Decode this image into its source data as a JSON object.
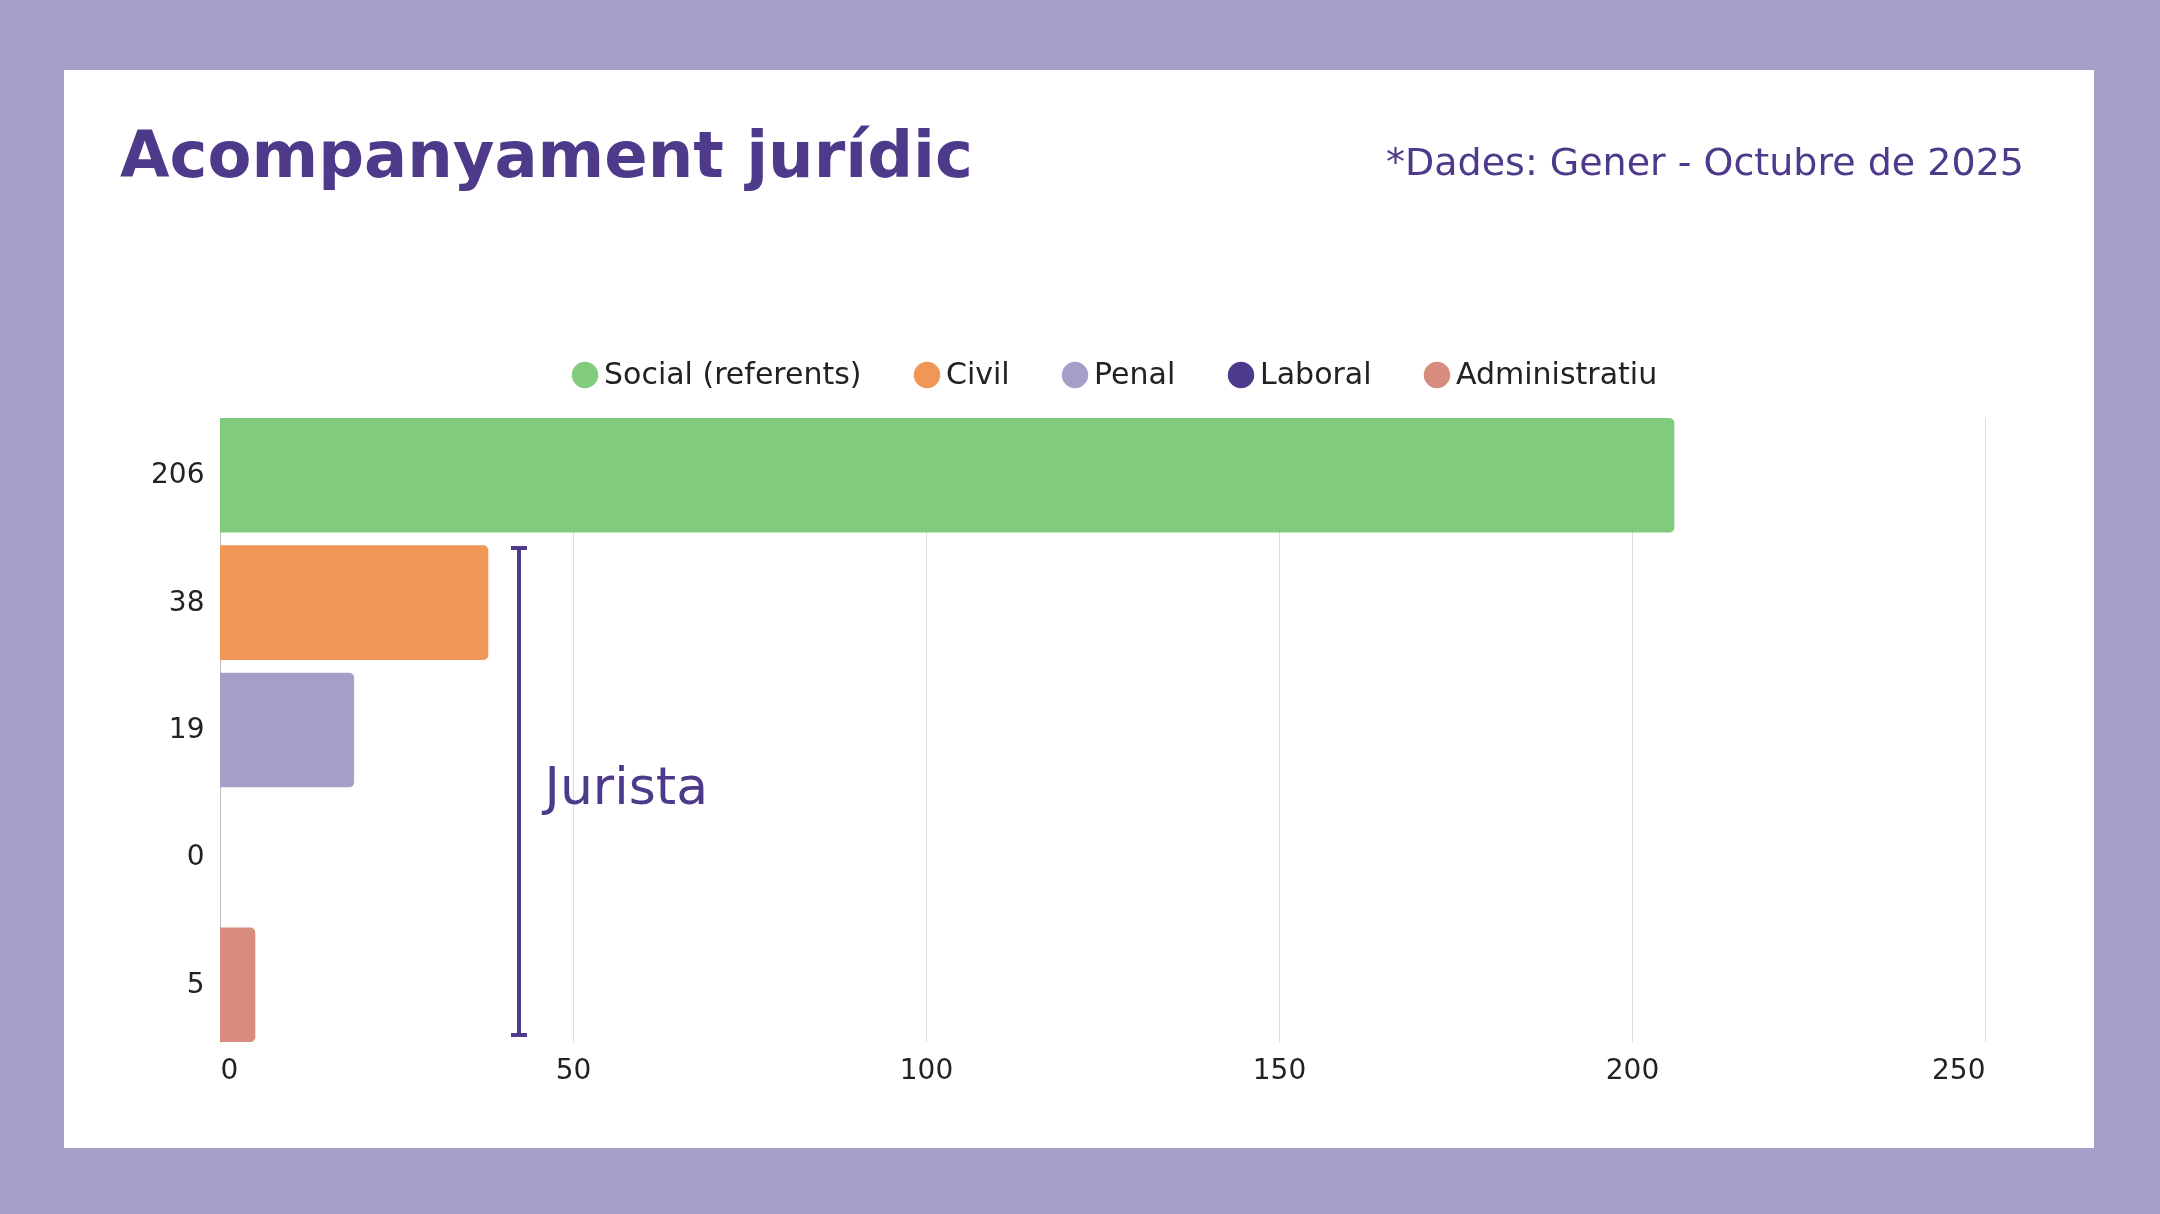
{
  "chart_data": {
    "type": "bar",
    "orientation": "horizontal",
    "title": "Acompanyament jurídic",
    "subtitle": "*Dades: Gener - Octubre de 2025",
    "categories": [
      "206",
      "38",
      "19",
      "0",
      "5"
    ],
    "series": [
      {
        "name": "Social (referents)",
        "color": "#81cc7c",
        "values": [
          206,
          null,
          null,
          null,
          null
        ]
      },
      {
        "name": "Civil",
        "color": "#f09758",
        "values": [
          null,
          38,
          null,
          null,
          null
        ]
      },
      {
        "name": "Penal",
        "color": "#a69ec9",
        "values": [
          null,
          null,
          19,
          null,
          null
        ]
      },
      {
        "name": "Laboral",
        "color": "#4e3a8a",
        "values": [
          null,
          null,
          null,
          0,
          null
        ]
      },
      {
        "name": "Administratiu",
        "color": "#d88c7e",
        "values": [
          null,
          null,
          null,
          null,
          5
        ]
      }
    ],
    "xlim": [
      0,
      250
    ],
    "xticks": [
      0,
      50,
      100,
      150,
      200,
      250
    ],
    "grid": "x",
    "legend": "top",
    "annotations": [
      "Jurista"
    ]
  }
}
